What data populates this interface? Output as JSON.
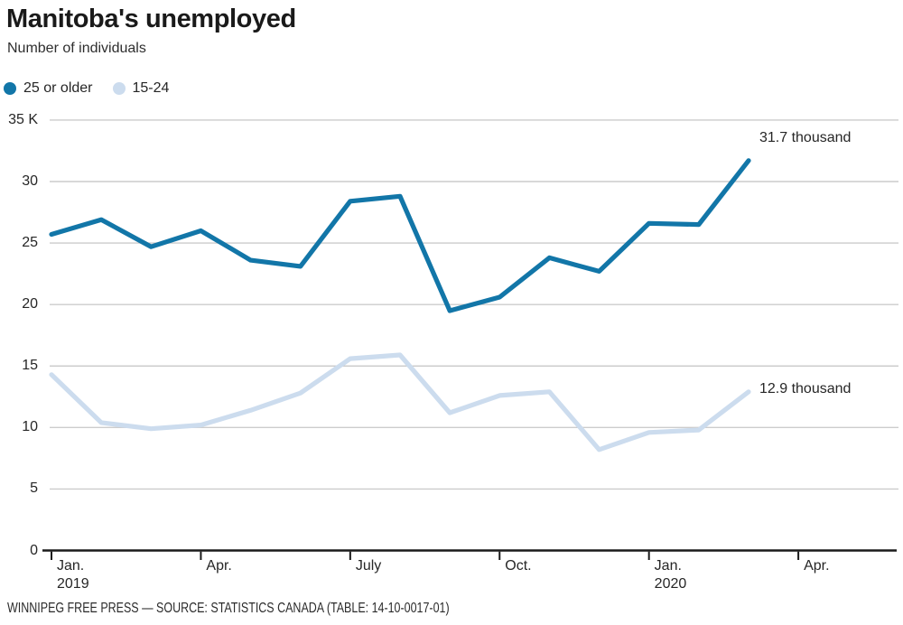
{
  "header": {
    "title": "Manitoba's unemployed",
    "subtitle": "Number of individuals"
  },
  "chart_data": {
    "type": "line",
    "title": "Manitoba's unemployed",
    "subtitle": "Number of individuals",
    "unit": "thousands of individuals",
    "grid": "horizontal",
    "legend_position": "top-left",
    "ylim": [
      0,
      35
    ],
    "months": [
      "Jan. 2019",
      "Feb. 2019",
      "Mar. 2019",
      "Apr. 2019",
      "May 2019",
      "June 2019",
      "July 2019",
      "Aug. 2019",
      "Sep. 2019",
      "Oct. 2019",
      "Nov. 2019",
      "Dec. 2019",
      "Jan. 2020",
      "Feb. 2020",
      "Mar. 2020"
    ],
    "yticks": {
      "values": [
        35,
        30,
        25,
        20,
        15,
        10,
        5,
        0
      ],
      "labels": [
        "35 K",
        "30",
        "25",
        "20",
        "15",
        "10",
        "5",
        "0"
      ]
    },
    "xticks": [
      {
        "line1": "Jan.",
        "line2": "2019",
        "month_index": 0
      },
      {
        "line1": "Apr.",
        "month_index": 3
      },
      {
        "line1": "July",
        "month_index": 6
      },
      {
        "line1": "Oct.",
        "month_index": 9
      },
      {
        "line1": "Jan.",
        "line2": "2020",
        "month_index": 12
      },
      {
        "line1": "Apr.",
        "month_index": 15
      }
    ],
    "series": [
      {
        "name": "25 or older",
        "color": "#1276a8",
        "values": [
          25.7,
          26.9,
          24.7,
          26.0,
          23.6,
          23.1,
          28.4,
          28.8,
          19.5,
          20.6,
          23.8,
          22.7,
          26.6,
          26.5,
          31.7
        ]
      },
      {
        "name": "15-24",
        "color": "#ccdcee",
        "values": [
          14.3,
          10.4,
          9.9,
          10.2,
          11.4,
          12.8,
          15.6,
          15.9,
          11.2,
          12.6,
          12.9,
          8.2,
          9.6,
          9.8,
          12.9
        ]
      }
    ],
    "annotations": [
      {
        "text": "31.7 thousand",
        "series": "25 or older",
        "month": "Mar. 2020",
        "value": 31.7
      },
      {
        "text": "12.9 thousand",
        "series": "15-24",
        "month": "Mar. 2020",
        "value": 12.9
      }
    ]
  },
  "footer": {
    "credit": "WINNIPEG FREE PRESS — SOURCE: STATISTICS CANADA (TABLE: 14-10-0017-01)"
  }
}
